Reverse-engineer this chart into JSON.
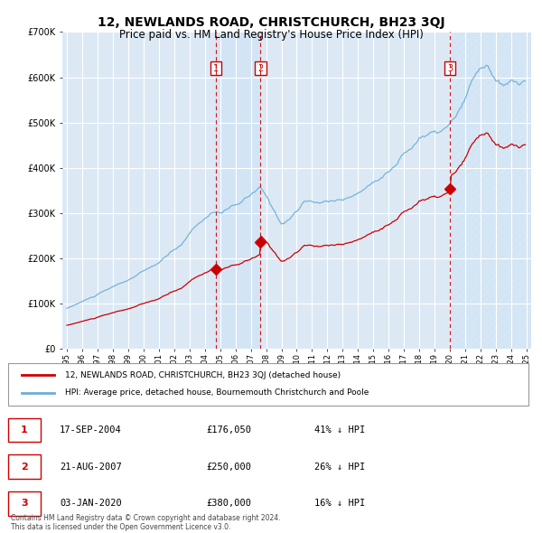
{
  "title": "12, NEWLANDS ROAD, CHRISTCHURCH, BH23 3QJ",
  "subtitle": "Price paid vs. HM Land Registry's House Price Index (HPI)",
  "title_fontsize": 10,
  "subtitle_fontsize": 8.5,
  "background_color": "#ffffff",
  "plot_bg_color": "#dce9f5",
  "grid_color": "#ffffff",
  "ylim": [
    0,
    700000
  ],
  "yticks": [
    0,
    100000,
    200000,
    300000,
    400000,
    500000,
    600000,
    700000
  ],
  "ytick_labels": [
    "£0",
    "£100K",
    "£200K",
    "£300K",
    "£400K",
    "£500K",
    "£600K",
    "£700K"
  ],
  "hpi_color": "#6baed6",
  "property_line_color": "#cc0000",
  "vline_color": "#cc0000",
  "marker_color": "#cc0000",
  "shade_color": "#c8dcf0",
  "hatch_color": "#b0cce0",
  "legend_label_property": "12, NEWLANDS ROAD, CHRISTCHURCH, BH23 3QJ (detached house)",
  "legend_label_hpi": "HPI: Average price, detached house, Bournemouth Christchurch and Poole",
  "footer": "Contains HM Land Registry data © Crown copyright and database right 2024.\nThis data is licensed under the Open Government Licence v3.0.",
  "xlim_left": 1994.7,
  "xlim_right": 2025.3,
  "transactions": [
    {
      "num": 1,
      "x": 2004.72,
      "price": 176050,
      "date": "17-SEP-2004",
      "price_str": "£176,050",
      "hpi_diff": "41% ↓ HPI"
    },
    {
      "num": 2,
      "x": 2007.64,
      "price": 250000,
      "date": "21-AUG-2007",
      "price_str": "£250,000",
      "hpi_diff": "26% ↓ HPI"
    },
    {
      "num": 3,
      "x": 2020.01,
      "price": 380000,
      "date": "03-JAN-2020",
      "price_str": "£380,000",
      "hpi_diff": "16% ↓ HPI"
    }
  ]
}
